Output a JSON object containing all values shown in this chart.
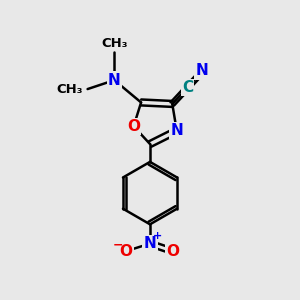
{
  "bg_color": "#e8e8e8",
  "bond_color": "#000000",
  "bond_width": 1.8,
  "atom_colors": {
    "N": "#0000ee",
    "O": "#ee0000",
    "C": "#008080",
    "default": "#000000"
  },
  "font_size_atom": 11,
  "font_size_small": 9.5,
  "font_size_charge": 8
}
